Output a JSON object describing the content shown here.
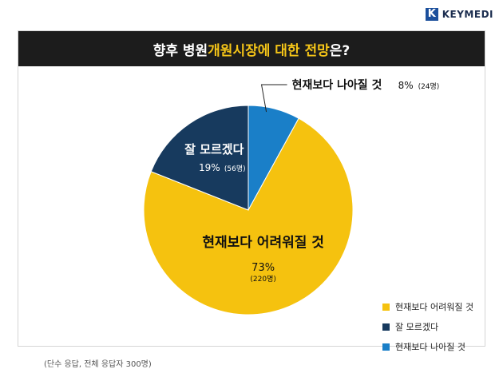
{
  "brand": {
    "mark": "K",
    "name": "KEYMEDI"
  },
  "title": {
    "prefix": "향후 병원 ",
    "highlight": "개원시장에 대한 전망",
    "suffix": "은?"
  },
  "chart_data": {
    "type": "pie",
    "title": "향후 병원 개원시장에 대한 전망은?",
    "slices": [
      {
        "label": "현재보다 나아질 것",
        "percent": 8,
        "count_label": "(24명)",
        "value_label": "8%",
        "color": "#1a7fc8"
      },
      {
        "label": "현재보다 어려워질 것",
        "percent": 73,
        "count_label": "(220명)",
        "value_label": "73%",
        "color": "#f5c20f"
      },
      {
        "label": "잘 모르겠다",
        "percent": 19,
        "count_label": "(56명)",
        "value_label": "19%",
        "color": "#173a5e"
      }
    ],
    "legend": [
      "현재보다 어려워질 것",
      "잘 모르겠다",
      "현재보다 나아질 것"
    ],
    "legend_placement": "bottom-right"
  },
  "footnote": "(단수 응답, 전체 응답자 300명)"
}
